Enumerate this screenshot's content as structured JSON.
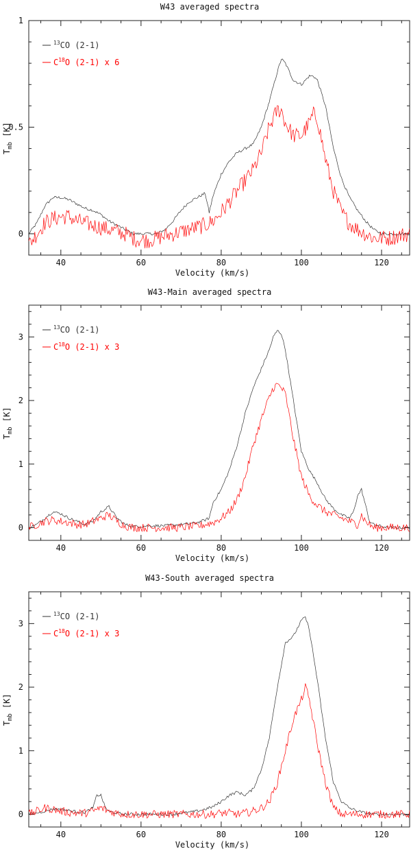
{
  "colors": {
    "co13": "#333333",
    "c18o": "#ff0000",
    "axis": "#222222"
  },
  "chart_data": [
    {
      "type": "line",
      "title": "W43 averaged spectra",
      "xlabel": "Velocity (km/s)",
      "ylabel_main": "T",
      "ylabel_sub": "mb",
      "ylabel_unit": "[K]",
      "xlim": [
        32,
        127
      ],
      "ylim": [
        -0.1,
        1.0
      ],
      "xticks": [
        40,
        60,
        80,
        100,
        120
      ],
      "xtick_labels": [
        "40",
        "60",
        "80",
        "100",
        "120"
      ],
      "yticks": [
        0,
        0.5,
        1
      ],
      "ytick_labels": [
        "0",
        "0.5",
        "1"
      ],
      "legend_position": "top-left",
      "series": [
        {
          "name": "13CO (2-1)",
          "legend_sup": "13",
          "legend_text": "CO (2-1)",
          "color": "#333333",
          "x": [
            32,
            34,
            36,
            38,
            40,
            42,
            44,
            46,
            48,
            50,
            52,
            54,
            56,
            58,
            60,
            62,
            64,
            66,
            68,
            70,
            72,
            74,
            76,
            77,
            78,
            80,
            82,
            84,
            86,
            88,
            90,
            92,
            94,
            95,
            96,
            98,
            100,
            102,
            103,
            104,
            106,
            108,
            110,
            112,
            114,
            116,
            118,
            120,
            122,
            124,
            127
          ],
          "y": [
            0.0,
            0.05,
            0.13,
            0.17,
            0.17,
            0.16,
            0.14,
            0.12,
            0.11,
            0.09,
            0.06,
            0.04,
            0.02,
            0.0,
            0.0,
            0.0,
            0.0,
            0.02,
            0.06,
            0.11,
            0.15,
            0.17,
            0.19,
            0.1,
            0.18,
            0.28,
            0.34,
            0.38,
            0.4,
            0.42,
            0.5,
            0.62,
            0.76,
            0.82,
            0.8,
            0.72,
            0.7,
            0.74,
            0.74,
            0.72,
            0.6,
            0.4,
            0.26,
            0.17,
            0.11,
            0.06,
            0.02,
            0.0,
            0.0,
            0.0,
            0.0
          ]
        },
        {
          "name": "C18O (2-1) x 6",
          "legend_pre": "C",
          "legend_sup": "18",
          "legend_text": "O (2-1) x 6",
          "color": "#ff0000",
          "x": [
            32,
            34,
            36,
            38,
            40,
            42,
            44,
            46,
            48,
            50,
            52,
            54,
            56,
            58,
            60,
            62,
            64,
            66,
            68,
            70,
            72,
            74,
            76,
            78,
            80,
            82,
            84,
            86,
            88,
            90,
            92,
            94,
            95,
            96,
            98,
            100,
            102,
            103,
            104,
            106,
            108,
            110,
            112,
            114,
            116,
            118,
            120,
            122,
            124,
            127
          ],
          "y": [
            -0.05,
            0.0,
            0.05,
            0.07,
            0.08,
            0.08,
            0.06,
            0.05,
            0.04,
            0.03,
            0.02,
            0.01,
            0.0,
            -0.02,
            -0.03,
            -0.03,
            -0.02,
            -0.01,
            0.0,
            0.01,
            0.02,
            0.03,
            0.04,
            0.06,
            0.1,
            0.15,
            0.2,
            0.25,
            0.3,
            0.38,
            0.5,
            0.58,
            0.58,
            0.52,
            0.46,
            0.46,
            0.52,
            0.56,
            0.54,
            0.35,
            0.2,
            0.1,
            0.05,
            0.02,
            0.0,
            -0.02,
            -0.02,
            -0.02,
            -0.01,
            0.0
          ]
        }
      ]
    },
    {
      "type": "line",
      "title": "W43-Main averaged spectra",
      "xlabel": "Velocity (km/s)",
      "ylabel_main": "T",
      "ylabel_sub": "mb",
      "ylabel_unit": "[K]",
      "xlim": [
        32,
        127
      ],
      "ylim": [
        -0.2,
        3.5
      ],
      "xticks": [
        40,
        60,
        80,
        100,
        120
      ],
      "xtick_labels": [
        "40",
        "60",
        "80",
        "100",
        "120"
      ],
      "yticks": [
        0,
        1,
        2,
        3
      ],
      "ytick_labels": [
        "0",
        "1",
        "2",
        "3"
      ],
      "legend_position": "top-left",
      "series": [
        {
          "name": "13CO (2-1)",
          "legend_sup": "13",
          "legend_text": "CO (2-1)",
          "color": "#333333",
          "x": [
            32,
            34,
            36,
            38,
            40,
            42,
            44,
            46,
            48,
            50,
            52,
            54,
            56,
            58,
            60,
            62,
            64,
            66,
            68,
            70,
            72,
            74,
            76,
            77,
            78,
            80,
            82,
            84,
            86,
            88,
            90,
            92,
            93,
            94,
            95,
            96,
            98,
            100,
            102,
            104,
            106,
            108,
            110,
            112,
            113,
            114,
            115,
            116,
            117,
            118,
            120,
            122,
            124,
            127
          ],
          "y": [
            0.0,
            0.05,
            0.15,
            0.25,
            0.22,
            0.15,
            0.1,
            0.05,
            0.1,
            0.25,
            0.33,
            0.15,
            0.05,
            0.02,
            0.02,
            0.03,
            0.03,
            0.03,
            0.04,
            0.05,
            0.06,
            0.08,
            0.12,
            0.15,
            0.4,
            0.6,
            0.9,
            1.3,
            1.8,
            2.2,
            2.5,
            2.8,
            3.0,
            3.1,
            3.05,
            2.8,
            2.0,
            1.2,
            0.9,
            0.7,
            0.45,
            0.3,
            0.2,
            0.15,
            0.25,
            0.5,
            0.6,
            0.35,
            0.1,
            0.05,
            0.02,
            0.0,
            0.0,
            0.0
          ]
        },
        {
          "name": "C18O (2-1) x 3",
          "legend_pre": "C",
          "legend_sup": "18",
          "legend_text": "O (2-1) x 3",
          "color": "#ff0000",
          "x": [
            32,
            34,
            36,
            38,
            40,
            42,
            44,
            46,
            48,
            50,
            52,
            54,
            56,
            58,
            60,
            62,
            64,
            66,
            68,
            70,
            72,
            74,
            76,
            78,
            80,
            82,
            84,
            86,
            88,
            90,
            92,
            93,
            94,
            95,
            96,
            98,
            100,
            102,
            104,
            106,
            108,
            110,
            112,
            114,
            115,
            116,
            118,
            120,
            122,
            124,
            127
          ],
          "y": [
            0.0,
            0.05,
            0.1,
            0.12,
            0.1,
            0.08,
            0.05,
            0.05,
            0.1,
            0.15,
            0.2,
            0.1,
            0.03,
            0.0,
            0.0,
            0.0,
            0.0,
            0.0,
            0.0,
            0.0,
            0.02,
            0.02,
            0.05,
            0.08,
            0.15,
            0.25,
            0.45,
            0.8,
            1.3,
            1.7,
            2.05,
            2.2,
            2.25,
            2.2,
            2.1,
            1.4,
            0.8,
            0.5,
            0.35,
            0.25,
            0.2,
            0.15,
            0.1,
            0.05,
            0.2,
            0.1,
            0.0,
            0.0,
            0.0,
            0.0,
            0.0
          ]
        }
      ]
    },
    {
      "type": "line",
      "title": "W43-South averaged spectra",
      "xlabel": "Velocity (km/s)",
      "ylabel_main": "T",
      "ylabel_sub": "mb",
      "ylabel_unit": "[K]",
      "xlim": [
        32,
        127
      ],
      "ylim": [
        -0.2,
        3.5
      ],
      "xticks": [
        40,
        60,
        80,
        100,
        120
      ],
      "xtick_labels": [
        "40",
        "60",
        "80",
        "100",
        "120"
      ],
      "yticks": [
        0,
        1,
        2,
        3
      ],
      "ytick_labels": [
        "0",
        "1",
        "2",
        "3"
      ],
      "legend_position": "top-left",
      "series": [
        {
          "name": "13CO (2-1)",
          "legend_sup": "13",
          "legend_text": "CO (2-1)",
          "color": "#333333",
          "x": [
            32,
            34,
            36,
            38,
            40,
            42,
            44,
            46,
            48,
            49,
            50,
            51,
            52,
            54,
            56,
            58,
            60,
            62,
            64,
            66,
            68,
            70,
            72,
            74,
            76,
            78,
            80,
            82,
            84,
            86,
            88,
            90,
            92,
            94,
            96,
            98,
            100,
            101,
            102,
            104,
            106,
            108,
            110,
            112,
            114,
            116,
            118,
            120,
            122,
            124,
            127
          ],
          "y": [
            0.0,
            0.02,
            0.05,
            0.08,
            0.08,
            0.06,
            0.04,
            0.03,
            0.1,
            0.3,
            0.3,
            0.12,
            0.04,
            0.02,
            0.0,
            0.0,
            0.0,
            0.0,
            0.0,
            0.0,
            0.0,
            0.02,
            0.03,
            0.05,
            0.08,
            0.12,
            0.2,
            0.3,
            0.35,
            0.3,
            0.4,
            0.7,
            1.2,
            2.0,
            2.7,
            2.8,
            3.05,
            3.1,
            2.9,
            2.1,
            1.2,
            0.5,
            0.2,
            0.1,
            0.05,
            0.02,
            0.0,
            0.0,
            0.0,
            0.0,
            0.0
          ]
        },
        {
          "name": "C18O (2-1) x 3",
          "legend_pre": "C",
          "legend_sup": "18",
          "legend_text": "O (2-1) x 3",
          "color": "#ff0000",
          "x": [
            32,
            34,
            36,
            38,
            40,
            42,
            44,
            46,
            48,
            50,
            52,
            54,
            56,
            58,
            60,
            62,
            64,
            66,
            68,
            70,
            72,
            74,
            76,
            78,
            80,
            82,
            84,
            86,
            88,
            90,
            92,
            94,
            96,
            98,
            100,
            101,
            102,
            104,
            106,
            108,
            110,
            112,
            114,
            116,
            118,
            120,
            122,
            124,
            127
          ],
          "y": [
            0.0,
            0.05,
            0.1,
            0.08,
            0.05,
            0.03,
            0.02,
            0.02,
            0.05,
            0.1,
            0.05,
            0.02,
            0.0,
            0.0,
            0.0,
            0.0,
            0.0,
            0.0,
            0.0,
            0.0,
            0.0,
            0.0,
            0.0,
            0.0,
            0.02,
            0.02,
            0.0,
            0.02,
            0.05,
            0.1,
            0.2,
            0.5,
            1.0,
            1.5,
            1.8,
            2.0,
            1.8,
            1.1,
            0.5,
            0.1,
            0.0,
            0.0,
            0.0,
            0.0,
            0.0,
            0.0,
            0.0,
            0.0,
            0.0
          ]
        }
      ]
    }
  ]
}
